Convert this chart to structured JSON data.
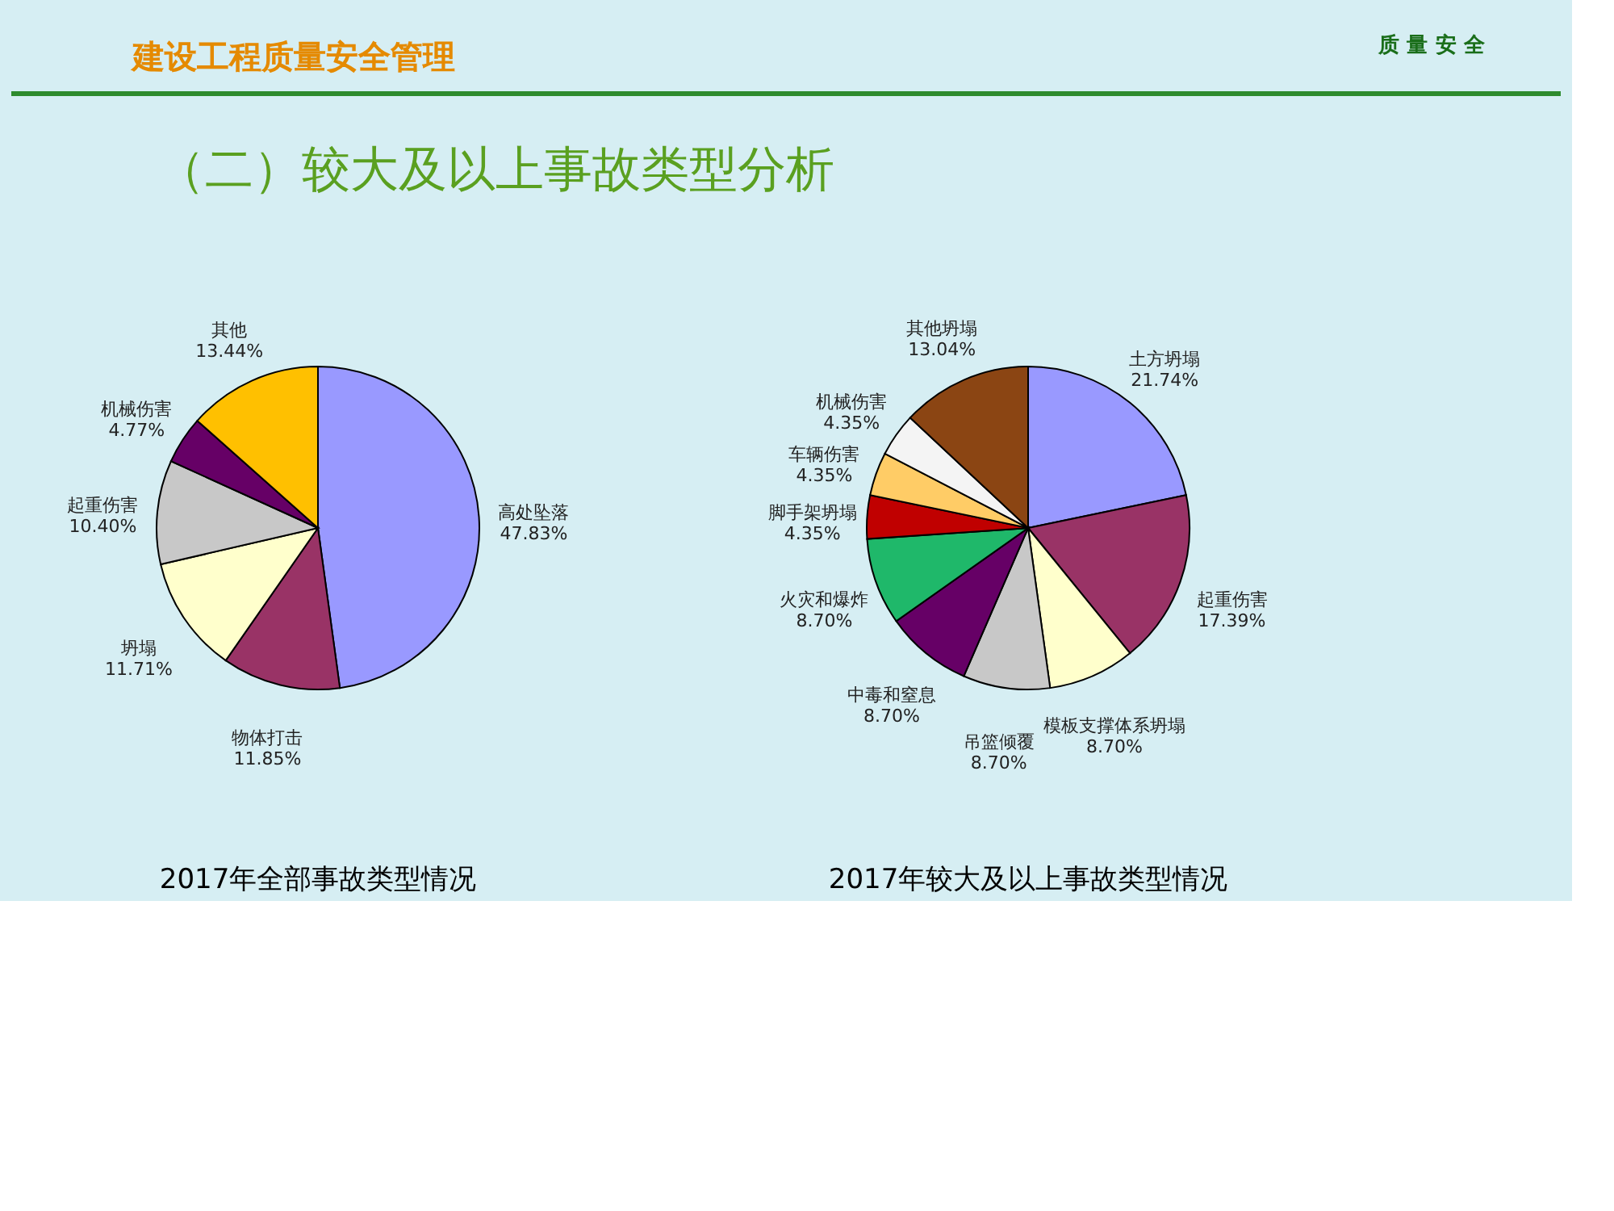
{
  "chart_data": [
    {
      "type": "other",
      "annotations": [
        "建设工程质量安全管理",
        "质 量 安 全",
        "（二）较大及以上事故类型分析"
      ]
    },
    {
      "type": "pie",
      "title": "2017年全部事故类型情况",
      "categories": [
        "高处坠落",
        "物体打击",
        "坍塌",
        "起重伤害",
        "机械伤害",
        "其他"
      ],
      "values": [
        47.83,
        11.85,
        11.71,
        10.4,
        4.77,
        13.44
      ],
      "value_labels": [
        "47.83%",
        "11.85%",
        "11.71%",
        "10.40%",
        "4.77%",
        "13.44%"
      ],
      "colors": [
        "#9999ff",
        "#993366",
        "#ffffcc",
        "#c8c8c8",
        "#660066",
        "#ffc000"
      ]
    },
    {
      "type": "pie",
      "title": "2017年较大及以上事故类型情况",
      "categories": [
        "土方坍塌",
        "起重伤害",
        "模板支撑体系坍塌",
        "吊篮倾覆",
        "中毒和窒息",
        "火灾和爆炸",
        "脚手架坍塌",
        "车辆伤害",
        "机械伤害",
        "其他坍塌"
      ],
      "values": [
        21.74,
        17.39,
        8.7,
        8.7,
        8.7,
        8.7,
        4.35,
        4.35,
        4.35,
        13.04
      ],
      "value_labels": [
        "21.74%",
        "17.39%",
        "8.70%",
        "8.70%",
        "8.70%",
        "8.70%",
        "4.35%",
        "4.35%",
        "4.35%",
        "13.04%"
      ],
      "colors": [
        "#9999ff",
        "#993366",
        "#ffffcc",
        "#c8c8c8",
        "#660066",
        "#1fb86a",
        "#c00000",
        "#ffcc66",
        "#f4f4f4",
        "#8b4513"
      ]
    }
  ]
}
